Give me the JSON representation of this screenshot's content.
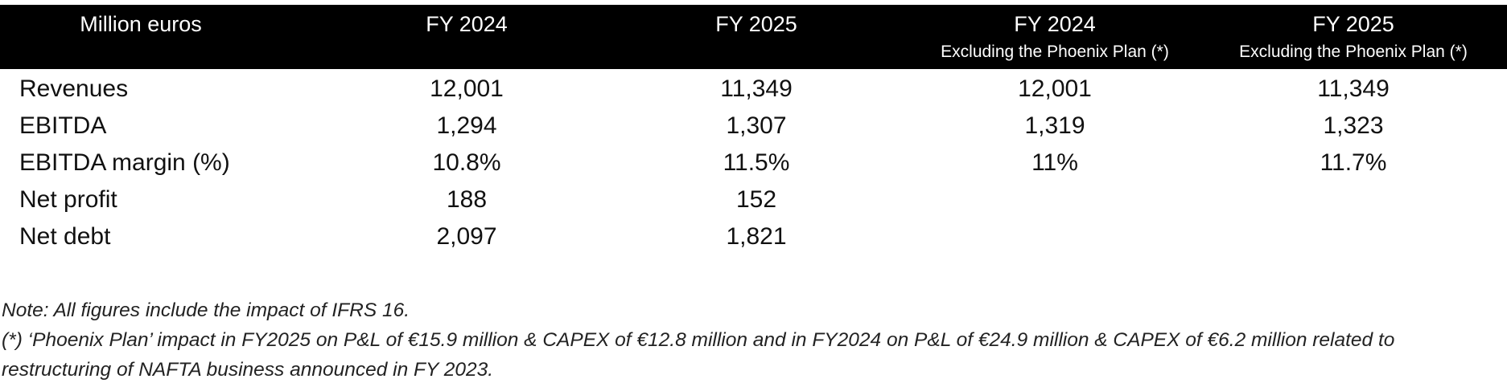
{
  "table": {
    "columns": [
      {
        "label": "Million euros"
      },
      {
        "label": "FY 2024"
      },
      {
        "label": "FY 2025"
      },
      {
        "label": "FY 2024",
        "sublabel": "Excluding the Phoenix Plan (*)"
      },
      {
        "label": "FY 2025",
        "sublabel": "Excluding the Phoenix Plan (*)"
      }
    ],
    "rows": [
      [
        "Revenues",
        "12,001",
        "11,349",
        "12,001",
        "11,349"
      ],
      [
        "EBITDA",
        "1,294",
        "1,307",
        "1,319",
        "1,323"
      ],
      [
        "EBITDA margin (%)",
        "10.8%",
        "11.5%",
        "11%",
        "11.7%"
      ],
      [
        "Net profit",
        "188",
        "152"
      ],
      [
        "Net debt",
        "2,097",
        "1,821"
      ]
    ]
  },
  "notes": [
    "Note: All figures include the impact of IFRS 16.",
    "(*) ‘Phoenix Plan’ impact in FY2025 on P&L of €15.9 million & CAPEX of €12.8 million and in FY2024 on P&L of €24.9 million & CAPEX of €6.2 million related to restructuring of NAFTA business announced in FY 2023."
  ]
}
